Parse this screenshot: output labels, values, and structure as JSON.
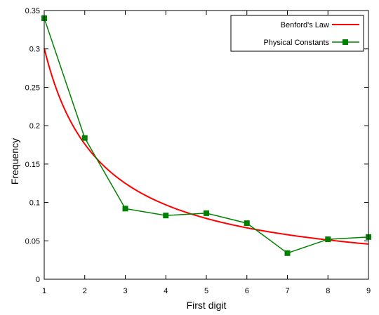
{
  "chart_data": {
    "type": "line",
    "title": "",
    "xlabel": "First digit",
    "ylabel": "Frequency",
    "xlim": [
      1,
      9
    ],
    "ylim": [
      0,
      0.35
    ],
    "x_ticks": [
      1,
      2,
      3,
      4,
      5,
      6,
      7,
      8,
      9
    ],
    "y_ticks": [
      0,
      0.05,
      0.1,
      0.15,
      0.2,
      0.25,
      0.3,
      0.35
    ],
    "grid": false,
    "legend_position": "top-right",
    "series": [
      {
        "name": "Benford's Law",
        "color": "#ff0000",
        "marker": "none",
        "x": [
          1,
          2,
          3,
          4,
          5,
          6,
          7,
          8,
          9
        ],
        "y": [
          0.301,
          0.176,
          0.125,
          0.097,
          0.079,
          0.067,
          0.058,
          0.051,
          0.046
        ]
      },
      {
        "name": "Physical Constants",
        "color": "#008000",
        "marker": "square",
        "x": [
          1,
          2,
          3,
          4,
          5,
          6,
          7,
          8,
          9
        ],
        "y": [
          0.34,
          0.184,
          0.092,
          0.083,
          0.086,
          0.073,
          0.034,
          0.052,
          0.055
        ]
      }
    ]
  }
}
